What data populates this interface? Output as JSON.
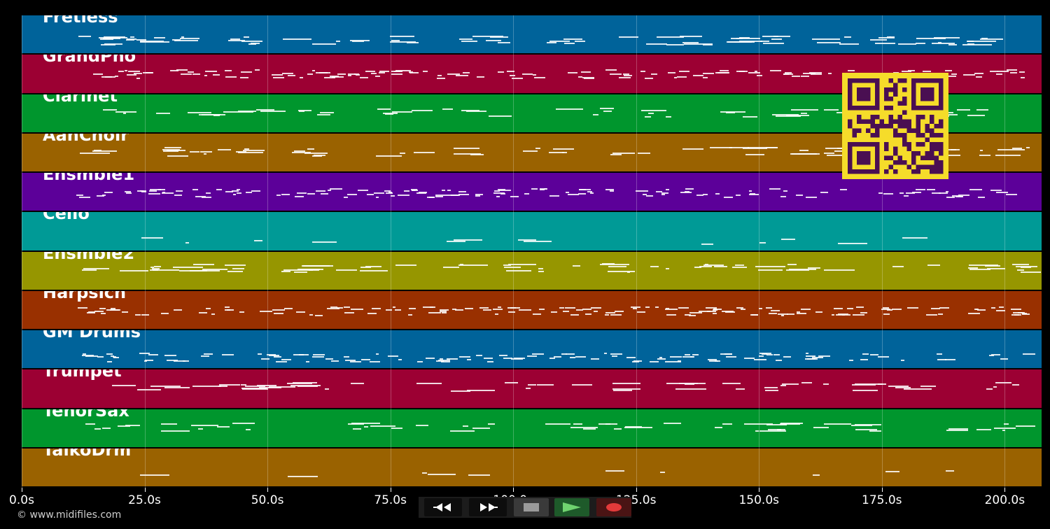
{
  "tracks": [
    {
      "label": "Fretless",
      "color": "#00639a",
      "density": 0.55,
      "center": 0.62
    },
    {
      "label": "GrandPno",
      "color": "#9c0033",
      "density": 0.85,
      "center": 0.48
    },
    {
      "label": "Clarinet",
      "color": "#00962d",
      "density": 0.35,
      "center": 0.45
    },
    {
      "label": "AahChoir",
      "color": "#9a6200",
      "density": 0.4,
      "center": 0.45
    },
    {
      "label": "Ensmble1",
      "color": "#5c0099",
      "density": 0.85,
      "center": 0.5
    },
    {
      "label": "Cello",
      "color": "#009a96",
      "density": 0.08,
      "center": 0.7
    },
    {
      "label": "Ensmble2",
      "color": "#969600",
      "density": 0.45,
      "center": 0.4
    },
    {
      "label": "Harpsich",
      "color": "#993000",
      "density": 0.9,
      "center": 0.5
    },
    {
      "label": "GM Drums",
      "color": "#00639a",
      "density": 0.75,
      "center": 0.68
    },
    {
      "label": "Trumpet",
      "color": "#9c0033",
      "density": 0.35,
      "center": 0.42
    },
    {
      "label": "TenorSax",
      "color": "#00962d",
      "density": 0.35,
      "center": 0.45
    },
    {
      "label": "TaikoDrm",
      "color": "#9a6200",
      "density": 0.06,
      "center": 0.6
    }
  ],
  "timeline": {
    "max_seconds": 207.5,
    "ticks": [
      {
        "value": 0,
        "label": "0.0s"
      },
      {
        "value": 25,
        "label": "25.0s"
      },
      {
        "value": 50,
        "label": "50.0s"
      },
      {
        "value": 75,
        "label": "75.0s"
      },
      {
        "value": 100,
        "label": "100.0s"
      },
      {
        "value": 125,
        "label": "125.0s"
      },
      {
        "value": 150,
        "label": "150.0s"
      },
      {
        "value": 175,
        "label": "175.0s"
      },
      {
        "value": 200,
        "label": "200.0s"
      }
    ]
  },
  "copyright": "© www.midifiles.com",
  "transport": {
    "buttons": [
      {
        "name": "rewind-button",
        "icon": "rewind-icon",
        "bg": "#0d0d0d"
      },
      {
        "name": "fast-forward-button",
        "icon": "fast-forward-icon",
        "bg": "#0d0d0d"
      },
      {
        "name": "stop-button",
        "icon": "stop-icon",
        "bg": "#3a3a3a"
      },
      {
        "name": "play-button",
        "icon": "play-icon",
        "bg": "#1e5a2a"
      },
      {
        "name": "record-button",
        "icon": "record-icon",
        "bg": "#4a1414"
      }
    ]
  },
  "qr_colors": {
    "fg": "#4a0f52",
    "bg": "#f5dc2a"
  }
}
